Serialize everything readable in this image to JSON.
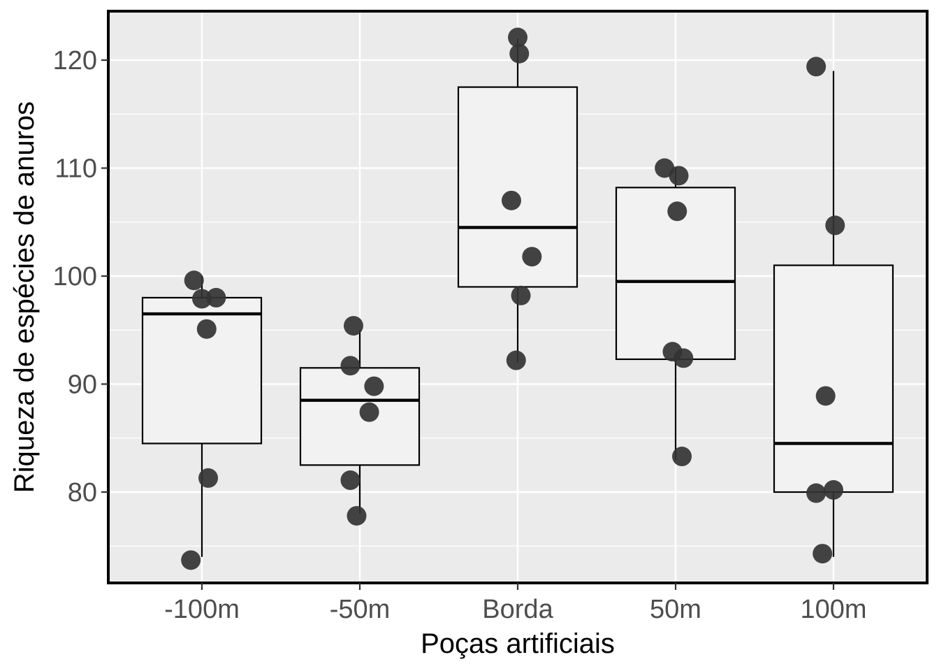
{
  "chart_data": {
    "type": "boxplot",
    "title": "",
    "xlabel": "Poças artificiais",
    "ylabel": "Riqueza de espécies de anuros",
    "ylim": [
      71.5,
      124.5
    ],
    "yticks": [
      80,
      90,
      100,
      110,
      120
    ],
    "y_minor_ticks": [
      75,
      85,
      95,
      105,
      115
    ],
    "grid": true,
    "legend": "none",
    "colors": {
      "panel": "#ebebeb",
      "grid": "#ffffff",
      "box_fill": "#f2f2f2",
      "box_line": "#000000",
      "point": "#333333",
      "border": "#000000"
    },
    "categories": [
      "-100m",
      "-50m",
      "Borda",
      "50m",
      "100m"
    ],
    "boxes": [
      {
        "category": "-100m",
        "min": 74,
        "q1": 84.5,
        "median": 96.5,
        "q3": 98,
        "max": 100
      },
      {
        "category": "-50m",
        "min": 78,
        "q1": 82.5,
        "median": 88.5,
        "q3": 91.5,
        "max": 95
      },
      {
        "category": "Borda",
        "min": 92,
        "q1": 99,
        "median": 104.5,
        "q3": 117.5,
        "max": 122
      },
      {
        "category": "50m",
        "min": 83,
        "q1": 92.3,
        "median": 99.5,
        "q3": 108.2,
        "max": 110
      },
      {
        "category": "100m",
        "min": 74,
        "q1": 80,
        "median": 84.5,
        "q3": 101,
        "max": 119
      }
    ],
    "points": [
      {
        "category": "-100m",
        "jitter": -0.05,
        "y": 99.6
      },
      {
        "category": "-100m",
        "jitter": 0.0,
        "y": 97.9
      },
      {
        "category": "-100m",
        "jitter": 0.09,
        "y": 98.0
      },
      {
        "category": "-100m",
        "jitter": 0.03,
        "y": 95.1
      },
      {
        "category": "-100m",
        "jitter": 0.04,
        "y": 81.3
      },
      {
        "category": "-100m",
        "jitter": -0.07,
        "y": 73.7
      },
      {
        "category": "-50m",
        "jitter": -0.06,
        "y": 81.1
      },
      {
        "category": "-50m",
        "jitter": -0.06,
        "y": 91.7
      },
      {
        "category": "-50m",
        "jitter": -0.04,
        "y": 95.4
      },
      {
        "category": "-50m",
        "jitter": 0.09,
        "y": 89.8
      },
      {
        "category": "-50m",
        "jitter": 0.06,
        "y": 87.4
      },
      {
        "category": "-50m",
        "jitter": -0.02,
        "y": 77.8
      },
      {
        "category": "Borda",
        "jitter": 0.0,
        "y": 122.1
      },
      {
        "category": "Borda",
        "jitter": 0.01,
        "y": 120.6
      },
      {
        "category": "Borda",
        "jitter": -0.04,
        "y": 107.0
      },
      {
        "category": "Borda",
        "jitter": 0.09,
        "y": 101.8
      },
      {
        "category": "Borda",
        "jitter": 0.02,
        "y": 98.2
      },
      {
        "category": "Borda",
        "jitter": -0.01,
        "y": 92.2
      },
      {
        "category": "50m",
        "jitter": -0.07,
        "y": 110.0
      },
      {
        "category": "50m",
        "jitter": 0.02,
        "y": 109.3
      },
      {
        "category": "50m",
        "jitter": 0.01,
        "y": 106.0
      },
      {
        "category": "50m",
        "jitter": -0.02,
        "y": 93.0
      },
      {
        "category": "50m",
        "jitter": 0.05,
        "y": 92.4
      },
      {
        "category": "50m",
        "jitter": 0.04,
        "y": 83.3
      },
      {
        "category": "100m",
        "jitter": -0.11,
        "y": 119.4
      },
      {
        "category": "100m",
        "jitter": 0.01,
        "y": 104.7
      },
      {
        "category": "100m",
        "jitter": -0.05,
        "y": 88.9
      },
      {
        "category": "100m",
        "jitter": -0.11,
        "y": 79.9
      },
      {
        "category": "100m",
        "jitter": 0.0,
        "y": 80.2
      },
      {
        "category": "100m",
        "jitter": -0.07,
        "y": 74.3
      }
    ]
  }
}
